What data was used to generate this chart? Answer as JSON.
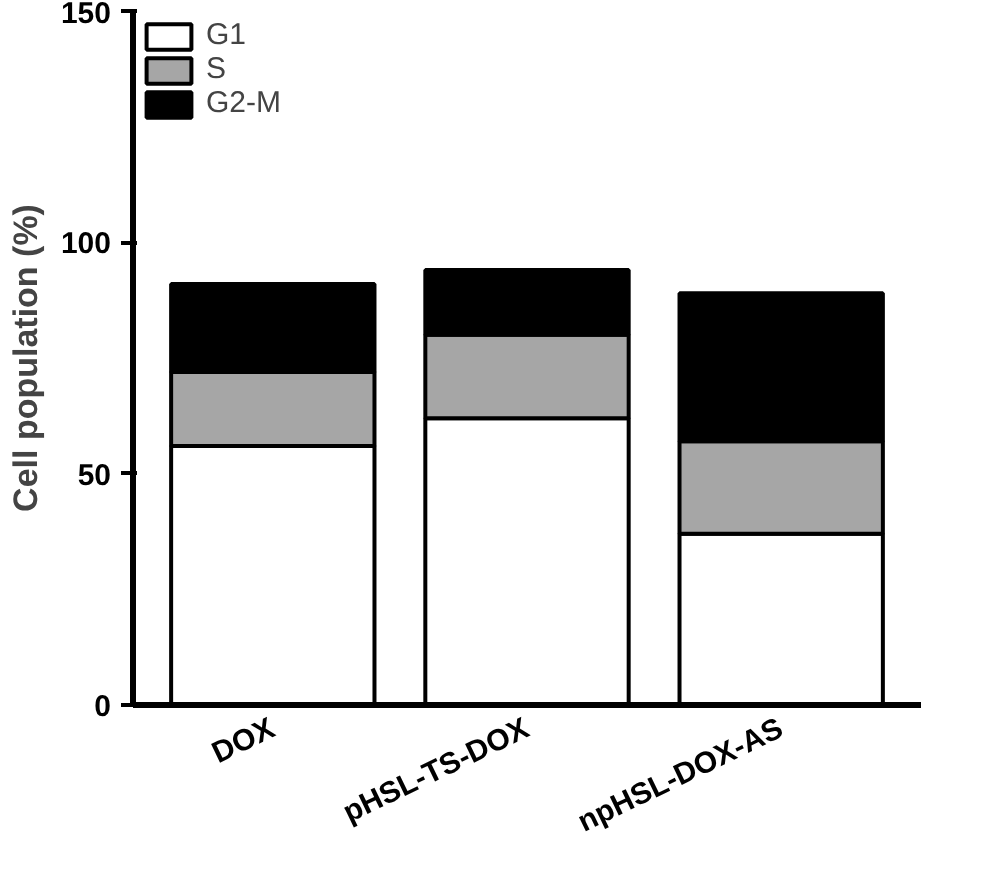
{
  "chart_data": {
    "type": "bar",
    "stacked": true,
    "ylabel": "Cell population (%)",
    "categories": [
      "DOX",
      "pHSL-TS-DOX",
      "npHSL-DOX-AS"
    ],
    "series": [
      {
        "name": "G1",
        "color": "#ffffff",
        "values": [
          56,
          62,
          37
        ]
      },
      {
        "name": "S",
        "color": "#a6a6a6",
        "values": [
          16,
          18,
          20
        ]
      },
      {
        "name": "G2-M",
        "color": "#000000",
        "values": [
          19,
          14,
          32
        ]
      }
    ],
    "ylim": [
      0,
      150
    ],
    "yticks": [
      0,
      50,
      100,
      150
    ],
    "grid": false,
    "legend": "top left"
  }
}
